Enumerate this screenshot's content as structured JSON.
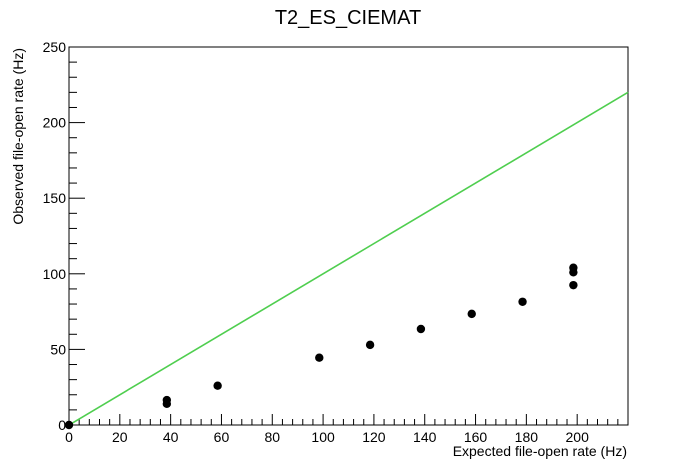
{
  "chart_data": {
    "type": "scatter",
    "title": "T2_ES_CIEMAT",
    "xlabel": "Expected file-open rate (Hz)",
    "ylabel": "Observed file-open rate (Hz)",
    "xlim": [
      0,
      220
    ],
    "ylim": [
      0,
      250
    ],
    "x_ticks": [
      0,
      20,
      40,
      60,
      80,
      100,
      120,
      140,
      160,
      180,
      200
    ],
    "y_ticks": [
      0,
      50,
      100,
      150,
      200,
      250
    ],
    "grid": false,
    "legend": "none",
    "points": [
      {
        "x": 0,
        "y": 0
      },
      {
        "x": 38.5,
        "y": 14
      },
      {
        "x": 38.5,
        "y": 16.5
      },
      {
        "x": 58.5,
        "y": 26
      },
      {
        "x": 98.5,
        "y": 44.5
      },
      {
        "x": 118.5,
        "y": 53
      },
      {
        "x": 138.5,
        "y": 63.5
      },
      {
        "x": 158.5,
        "y": 73.5
      },
      {
        "x": 178.5,
        "y": 81.5
      },
      {
        "x": 198.5,
        "y": 92.5
      },
      {
        "x": 198.5,
        "y": 101
      },
      {
        "x": 198.5,
        "y": 104
      }
    ],
    "reference_line": {
      "slope": 1,
      "color": "#4fce4f",
      "from": [
        0,
        0
      ],
      "to": [
        220,
        220
      ]
    },
    "marker_color": "#000000"
  }
}
